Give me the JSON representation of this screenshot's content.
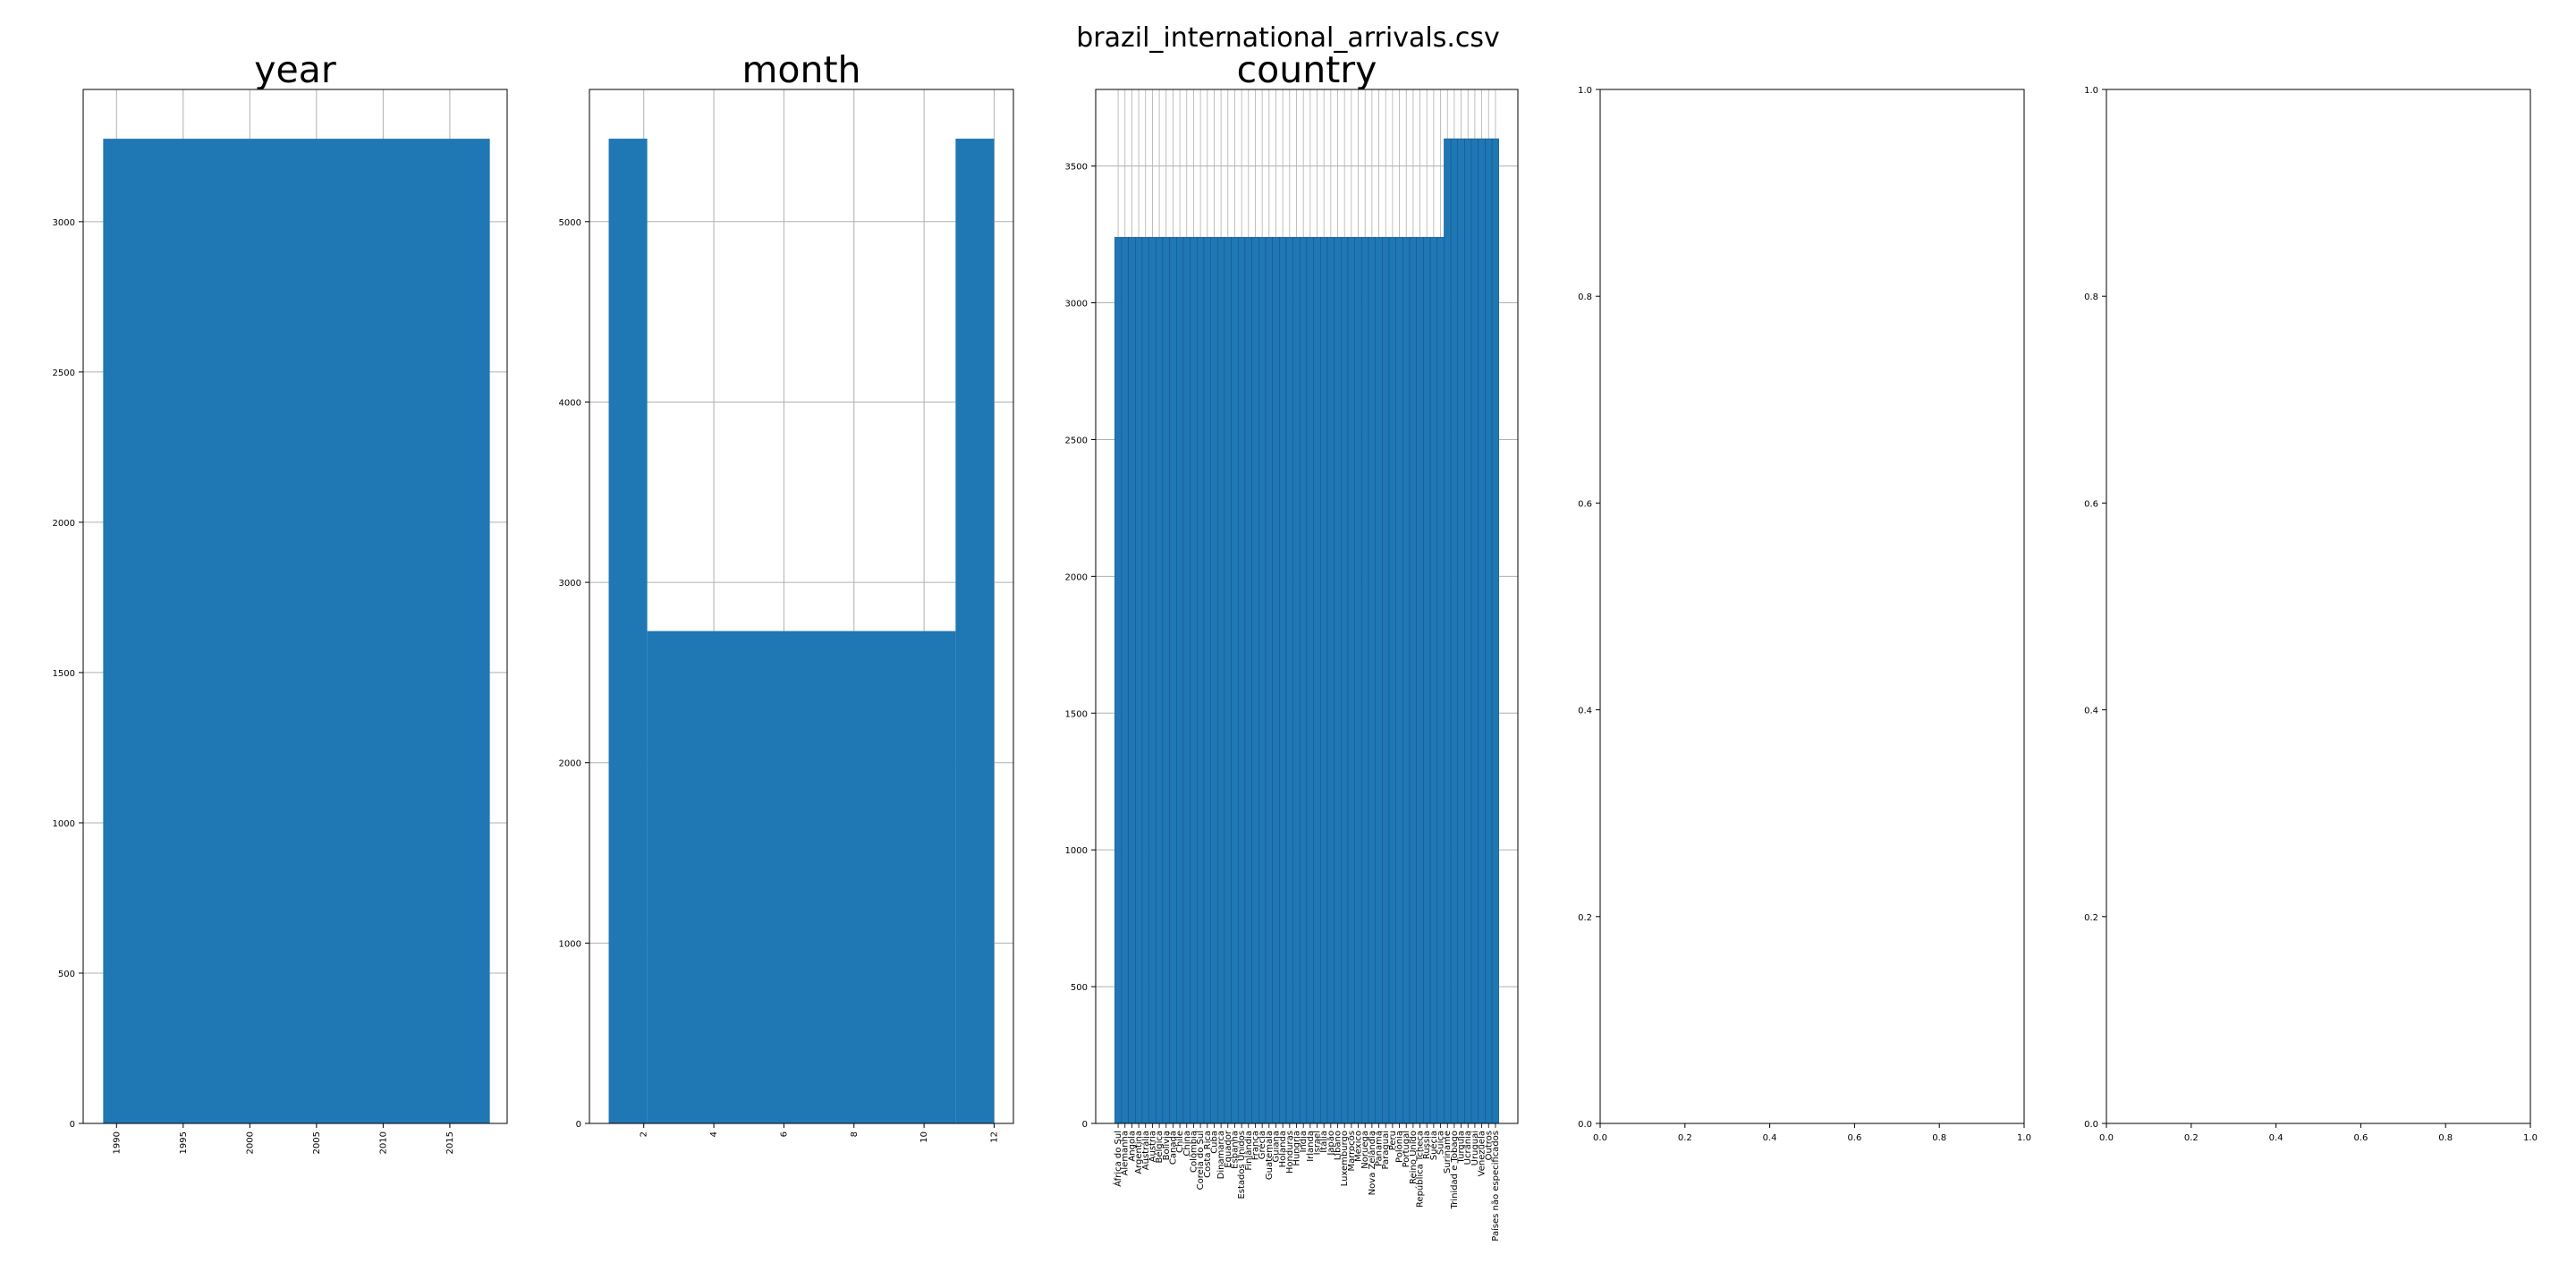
{
  "figure_title": "brazil_international_arrivals.csv",
  "colors": {
    "bar": "#1f77b4",
    "grid": "#b0b0b0",
    "frame": "#000000"
  },
  "chart_data": [
    {
      "type": "bar",
      "title": "year",
      "xlabel": "",
      "ylabel": "",
      "x_ticks": [
        "1990",
        "1995",
        "2000",
        "2005",
        "2010",
        "2015"
      ],
      "x_tick_values": [
        1990,
        1995,
        2000,
        2005,
        2010,
        2015
      ],
      "y_ticks": [
        "0",
        "500",
        "1000",
        "1500",
        "2000",
        "2500",
        "3000"
      ],
      "y_tick_values": [
        0,
        500,
        1000,
        1500,
        2000,
        2500,
        3000
      ],
      "xlim": [
        1987.5,
        2019.3
      ],
      "ylim": [
        0,
        3440
      ],
      "x_tick_rotation": 90,
      "grid": true,
      "bins": [
        {
          "x0": 1989.0,
          "x1": 2018.0,
          "value": 3276
        }
      ]
    },
    {
      "type": "bar",
      "title": "month",
      "xlabel": "",
      "ylabel": "",
      "x_ticks": [
        "2",
        "4",
        "6",
        "8",
        "10",
        "12"
      ],
      "x_tick_values": [
        2,
        4,
        6,
        8,
        10,
        12
      ],
      "y_ticks": [
        "0",
        "1000",
        "2000",
        "3000",
        "4000",
        "5000"
      ],
      "y_tick_values": [
        0,
        1000,
        2000,
        3000,
        4000,
        5000
      ],
      "xlim": [
        0.45,
        12.55
      ],
      "ylim": [
        0,
        5733
      ],
      "x_tick_rotation": 90,
      "grid": true,
      "bins": [
        {
          "x0": 1.0,
          "x1": 2.1,
          "value": 5460
        },
        {
          "x0": 2.1,
          "x1": 10.9,
          "value": 2730
        },
        {
          "x0": 10.9,
          "x1": 12.0,
          "value": 5460
        }
      ]
    },
    {
      "type": "bar",
      "title": "country",
      "xlabel": "",
      "ylabel": "",
      "y_ticks": [
        "0",
        "500",
        "1000",
        "1500",
        "2000",
        "2500",
        "3000",
        "3500"
      ],
      "y_tick_values": [
        0,
        500,
        1000,
        1500,
        2000,
        2500,
        3000,
        3500
      ],
      "ylim": [
        0,
        3780
      ],
      "x_tick_rotation": 90,
      "grid": true,
      "categories": [
        "África do Sul",
        "Alemanha",
        "Angola",
        "Argentina",
        "Austrália",
        "Áustria",
        "Bélgica",
        "Bolívia",
        "Canadá",
        "Chile",
        "China",
        "Colômbia",
        "Coreia do Sul",
        "Costa Rica",
        "Cuba",
        "Dinamarca",
        "Equador",
        "Espanha",
        "Estados Unidos",
        "Finlândia",
        "França",
        "Grécia",
        "Guatemala",
        "Guiana",
        "Holanda",
        "Honduras",
        "Hungria",
        "Índia",
        "Irlanda",
        "Israel",
        "Itália",
        "Japão",
        "Líbano",
        "Luxemburgo",
        "Marrocos",
        "México",
        "Noruega",
        "Nova Zelândia",
        "Panamá",
        "Paraguai",
        "Peru",
        "Polônia",
        "Portugal",
        "Reino Unido",
        "República Tcheca",
        "Rússia",
        "Suécia",
        "Suíça",
        "Suriname",
        "Trinidad e Tobago",
        "Turquia",
        "Ucrânia",
        "Uruguai",
        "Venezuela",
        "Outros",
        "Países não especificados"
      ],
      "values": [
        3240,
        3240,
        3240,
        3240,
        3240,
        3240,
        3240,
        3240,
        3240,
        3240,
        3240,
        3240,
        3240,
        3240,
        3240,
        3240,
        3240,
        3240,
        3240,
        3240,
        3240,
        3240,
        3240,
        3240,
        3240,
        3240,
        3240,
        3240,
        3240,
        3240,
        3240,
        3240,
        3240,
        3240,
        3240,
        3240,
        3240,
        3240,
        3240,
        3240,
        3240,
        3240,
        3240,
        3240,
        3240,
        3240,
        3240,
        3240,
        3600,
        3600,
        3600,
        3600,
        3600,
        3600,
        3600,
        3600
      ]
    },
    {
      "type": "bar",
      "title": "",
      "xlabel": "",
      "ylabel": "",
      "x_ticks": [
        "0.0",
        "0.2",
        "0.4",
        "0.6",
        "0.8",
        "1.0"
      ],
      "x_tick_values": [
        0,
        0.2,
        0.4,
        0.6,
        0.8,
        1.0
      ],
      "y_ticks": [
        "0.0",
        "0.2",
        "0.4",
        "0.6",
        "0.8",
        "1.0"
      ],
      "y_tick_values": [
        0,
        0.2,
        0.4,
        0.6,
        0.8,
        1.0
      ],
      "xlim": [
        0,
        1
      ],
      "ylim": [
        0,
        1
      ],
      "grid": false,
      "bins": []
    },
    {
      "type": "bar",
      "title": "",
      "xlabel": "",
      "ylabel": "",
      "x_ticks": [
        "0.0",
        "0.2",
        "0.4",
        "0.6",
        "0.8",
        "1.0"
      ],
      "x_tick_values": [
        0,
        0.2,
        0.4,
        0.6,
        0.8,
        1.0
      ],
      "y_ticks": [
        "0.0",
        "0.2",
        "0.4",
        "0.6",
        "0.8",
        "1.0"
      ],
      "y_tick_values": [
        0,
        0.2,
        0.4,
        0.6,
        0.8,
        1.0
      ],
      "xlim": [
        0,
        1
      ],
      "ylim": [
        0,
        1
      ],
      "grid": false,
      "bins": []
    }
  ]
}
